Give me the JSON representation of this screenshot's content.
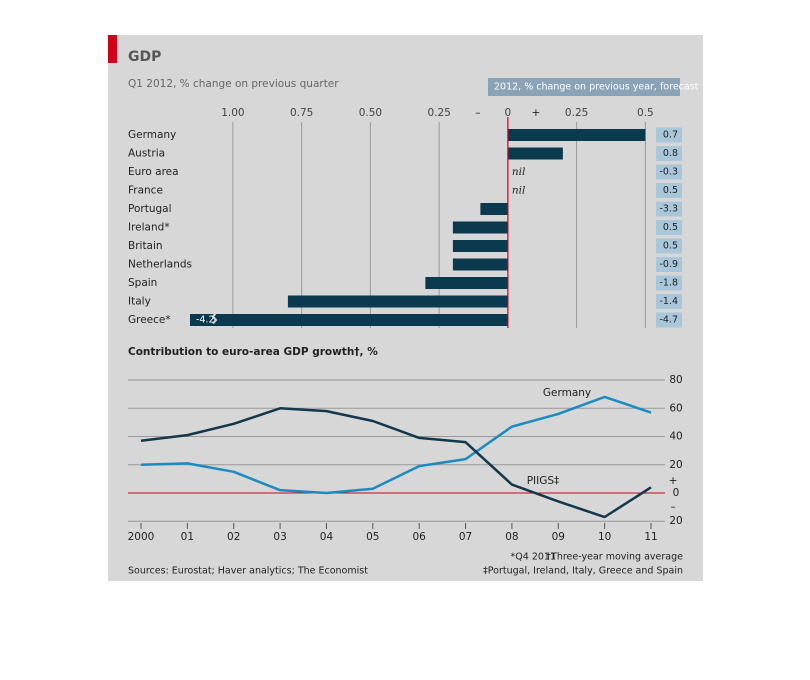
{
  "chart_data": [
    {
      "type": "bar",
      "orientation": "horizontal",
      "title": "GDP",
      "subtitle": "Q1 2012, % change on previous quarter",
      "forecast_title": "2012, % change on previous year, forecast",
      "categories": [
        "Germany",
        "Austria",
        "Euro area",
        "France",
        "Portugal",
        "Ireland*",
        "Britain",
        "Netherlands",
        "Spain",
        "Italy",
        "Greece*"
      ],
      "values": [
        0.5,
        0.2,
        0,
        0,
        -0.1,
        -0.2,
        -0.2,
        -0.2,
        -0.3,
        -0.8,
        -4.2
      ],
      "value_labels": [
        null,
        null,
        "nil",
        "nil",
        null,
        null,
        null,
        null,
        null,
        null,
        "-4.2"
      ],
      "forecast_values": [
        0.7,
        0.8,
        -0.3,
        0.5,
        -3.3,
        0.5,
        0.5,
        -0.9,
        -1.8,
        -1.4,
        -4.7
      ],
      "xlim": [
        -1.156,
        0.535
      ],
      "xticks": [
        {
          "value": -1,
          "label": "1.00"
        },
        {
          "value": -0.75,
          "label": "0.75"
        },
        {
          "value": -0.5,
          "label": "0.50"
        },
        {
          "value": -0.25,
          "label": "0.25"
        },
        0,
        0.25,
        0.5
      ],
      "sign_labels": [
        "–",
        "+"
      ],
      "color": "#0b3a4e",
      "forecast_color": "#a9c7da",
      "grid": true
    },
    {
      "type": "line",
      "title": "Contribution to euro-area GDP growth†, %",
      "categories": [
        "2000",
        "01",
        "02",
        "03",
        "04",
        "05",
        "06",
        "07",
        "08",
        "09",
        "10",
        "11"
      ],
      "series": [
        {
          "name": "Germany",
          "color": "#1b8bc0",
          "values": [
            20,
            21,
            15,
            2,
            0,
            3,
            19,
            24,
            47,
            56,
            68,
            57
          ]
        },
        {
          "name": "PIIGS‡",
          "color": "#13384b",
          "values": [
            37,
            41,
            49,
            60,
            58,
            51,
            39,
            36,
            6,
            -6,
            -17,
            4
          ]
        }
      ],
      "ylim": [
        -22,
        82
      ],
      "yticks": [
        {
          "value": -20,
          "label": "20"
        },
        0,
        20,
        40,
        60,
        80
      ],
      "sign_labels": [
        "+",
        "–"
      ],
      "grid": true
    }
  ],
  "footer": {
    "notes": [
      "*Q4 2011",
      "†Three-year moving average",
      "‡Portugal, Ireland, Italy, Greece and Spain"
    ],
    "source": "Sources: Eurostat; Haver analytics; The Economist"
  }
}
